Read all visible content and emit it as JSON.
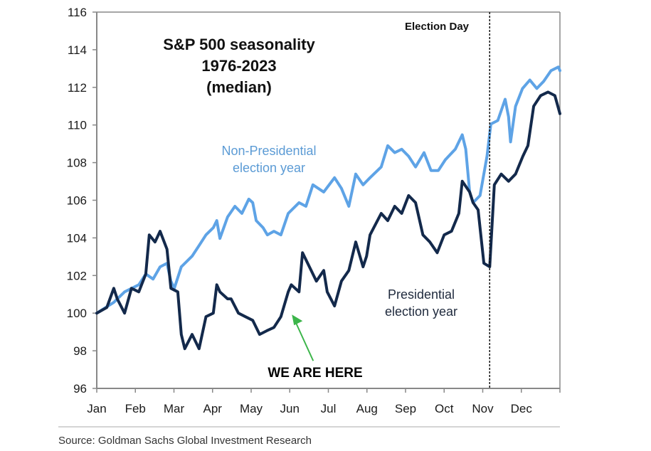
{
  "chart_data": {
    "type": "line",
    "title_lines": [
      "S&P 500 seasonality",
      "1976-2023",
      "(median)"
    ],
    "xlabel": "",
    "ylabel": "",
    "x_unit": "months since Jan 1",
    "xlim": [
      0,
      12
    ],
    "ylim": [
      96,
      116
    ],
    "yticks": [
      96,
      98,
      100,
      102,
      104,
      106,
      108,
      110,
      112,
      114,
      116
    ],
    "xticks": [
      0,
      1,
      2,
      3,
      4,
      5,
      6,
      7,
      8,
      9,
      10,
      11,
      12
    ],
    "xtick_labels": [
      "Jan",
      "Feb",
      "Mar",
      "Apr",
      "May",
      "Jun",
      "Jul",
      "Aug",
      "Sep",
      "Oct",
      "Nov",
      "Dec",
      ""
    ],
    "grid": false,
    "series": [
      {
        "name": "Non-Presidential election year",
        "color": "#5ea3e6",
        "x": [
          0,
          0.44,
          0.72,
          1.09,
          1.27,
          1.46,
          1.64,
          1.82,
          1.92,
          2.01,
          2.19,
          2.47,
          2.65,
          2.83,
          3.02,
          3.11,
          3.19,
          3.39,
          3.58,
          3.76,
          3.94,
          4.04,
          4.13,
          4.31,
          4.42,
          4.59,
          4.77,
          4.96,
          5.24,
          5.42,
          5.6,
          5.88,
          6.16,
          6.34,
          6.53,
          6.71,
          6.9,
          7.08,
          7.37,
          7.54,
          7.72,
          7.9,
          8.08,
          8.26,
          8.48,
          8.66,
          8.85,
          9.03,
          9.29,
          9.47,
          9.56,
          9.66,
          9.75,
          9.93,
          10.11,
          10.21,
          10.39,
          10.58,
          10.67,
          10.72,
          10.85,
          11.03,
          11.22,
          11.4,
          11.58,
          11.77,
          11.96,
          12.0
        ],
        "values": [
          100.0,
          100.57,
          101.13,
          101.51,
          102.08,
          101.81,
          102.46,
          102.65,
          101.7,
          101.32,
          102.46,
          103.03,
          103.59,
          104.16,
          104.54,
          104.92,
          103.97,
          105.11,
          105.68,
          105.3,
          106.06,
          105.87,
          104.92,
          104.54,
          104.16,
          104.35,
          104.16,
          105.3,
          105.87,
          105.68,
          106.82,
          106.44,
          107.2,
          106.63,
          105.68,
          107.39,
          106.82,
          107.2,
          107.77,
          108.9,
          108.53,
          108.71,
          108.34,
          107.77,
          108.53,
          107.58,
          107.58,
          108.15,
          108.72,
          109.48,
          108.72,
          106.44,
          105.87,
          106.25,
          108.34,
          110.05,
          110.24,
          111.37,
          110.43,
          109.1,
          110.99,
          111.94,
          112.39,
          111.94,
          112.32,
          112.89,
          113.08,
          112.89
        ]
      },
      {
        "name": "Presidential election year",
        "color": "#13294b",
        "x": [
          0,
          0.26,
          0.44,
          0.53,
          0.72,
          0.9,
          1.09,
          1.27,
          1.36,
          1.51,
          1.64,
          1.82,
          1.92,
          2.1,
          2.19,
          2.28,
          2.47,
          2.65,
          2.83,
          3.02,
          3.11,
          3.19,
          3.39,
          3.48,
          3.67,
          3.85,
          4.04,
          4.22,
          4.4,
          4.59,
          4.77,
          4.96,
          5.04,
          5.24,
          5.33,
          5.51,
          5.69,
          5.88,
          5.97,
          6.16,
          6.34,
          6.53,
          6.71,
          6.9,
          6.99,
          7.08,
          7.37,
          7.54,
          7.72,
          7.9,
          8.08,
          8.26,
          8.45,
          8.63,
          8.82,
          9.0,
          9.19,
          9.38,
          9.47,
          9.66,
          9.75,
          9.88,
          10.03,
          10.18,
          10.3,
          10.48,
          10.67,
          10.85,
          11.04,
          11.17,
          11.32,
          11.5,
          11.69,
          11.87,
          12.0
        ],
        "values": [
          100.0,
          100.3,
          101.32,
          100.76,
          100.0,
          101.32,
          101.13,
          102.08,
          104.16,
          103.78,
          104.35,
          103.4,
          101.32,
          101.13,
          98.87,
          98.11,
          98.87,
          98.11,
          99.81,
          100.0,
          101.51,
          101.13,
          100.76,
          100.76,
          100.0,
          99.81,
          99.62,
          98.87,
          99.06,
          99.24,
          99.81,
          101.13,
          101.51,
          101.13,
          103.21,
          102.46,
          101.7,
          102.27,
          101.13,
          100.38,
          101.7,
          102.27,
          103.78,
          102.46,
          103.02,
          104.16,
          105.3,
          104.92,
          105.68,
          105.3,
          106.25,
          105.87,
          104.16,
          103.78,
          103.21,
          104.16,
          104.35,
          105.3,
          107.01,
          106.44,
          105.87,
          105.49,
          102.65,
          102.46,
          106.82,
          107.39,
          107.01,
          107.39,
          108.34,
          108.9,
          111.0,
          111.56,
          111.75,
          111.56,
          110.6
        ]
      }
    ],
    "annotations": {
      "series_light_label": [
        "Non-Presidential",
        "election year"
      ],
      "series_dark_label": [
        "Presidential",
        "election year"
      ],
      "we_are_here": "WE ARE HERE",
      "we_are_here_point": {
        "x": 5.0,
        "value": 100.3
      },
      "election_day_label": "Election Day",
      "election_day_x": 10.18,
      "arrow_color": "#3cb54a"
    },
    "source": "Source: Goldman Sachs Global Investment Research"
  }
}
